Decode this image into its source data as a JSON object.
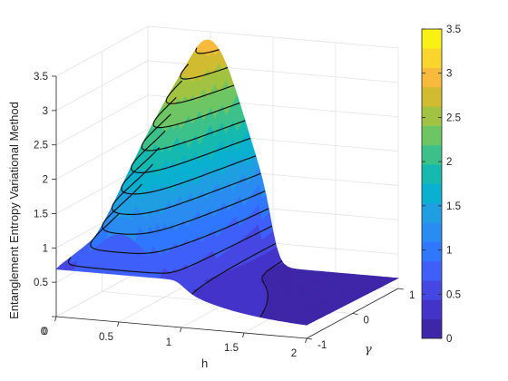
{
  "chart_data": {
    "type": "surface",
    "xlabel": "h",
    "ylabel": "γ",
    "zlabel": "Entanglement Entropy Variational Method",
    "xlim": [
      0,
      2
    ],
    "ylim": [
      -1,
      1
    ],
    "zlim": [
      0,
      3.5
    ],
    "x_ticks": [
      "0",
      "0.5",
      "1",
      "1.5",
      "2"
    ],
    "y_ticks": [
      "-1",
      "0",
      "1"
    ],
    "z_ticks": [
      "0.5",
      "1",
      "1.5",
      "2",
      "2.5",
      "3",
      "3.5"
    ],
    "colorbar": {
      "min": 0,
      "max": 3.5,
      "step": 0.25,
      "ticks": [
        "0",
        "0.5",
        "1",
        "1.5",
        "2",
        "2.5",
        "3",
        "3.5"
      ]
    },
    "colormap": [
      "#3e26a8",
      "#4433c9",
      "#4647e3",
      "#3f5ffa",
      "#2e77fe",
      "#2a8cf0",
      "#1f9fe1",
      "#0ab0cf",
      "#15b9b0",
      "#3dc18b",
      "#6ec564",
      "#a1c341",
      "#d1bb31",
      "#f7ba3c",
      "#fad52e",
      "#f8f113"
    ],
    "surface_description": "ln(2) plateau for h<1 at gamma=-1, rising to ~3.4 at h=0.5 gamma=1; drops to ~0.1 for h>1",
    "grid": true
  }
}
